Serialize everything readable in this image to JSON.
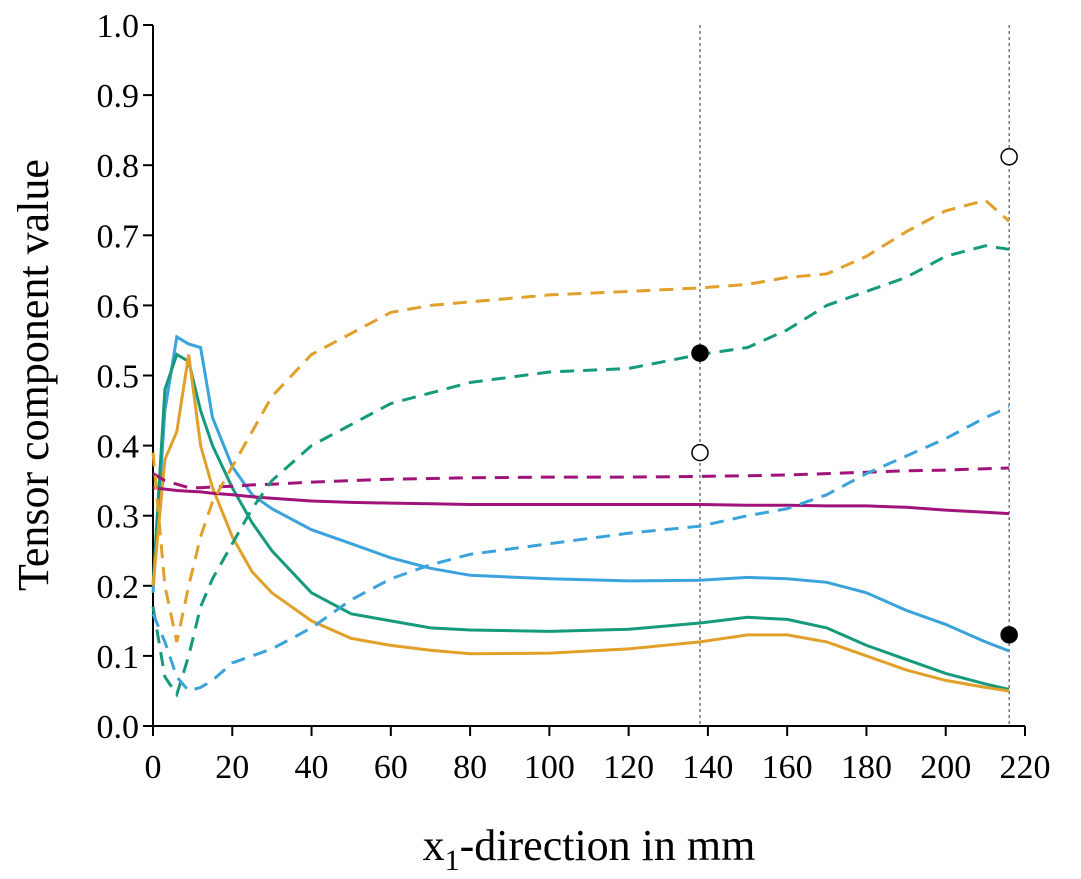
{
  "chart_data": {
    "type": "line",
    "ylabel": "Tensor component value",
    "xlabel": {
      "main": "x",
      "sub": "1",
      "rest": "-direction in mm"
    },
    "x": [
      0,
      3,
      6,
      9,
      12,
      15,
      20,
      25,
      30,
      40,
      50,
      60,
      70,
      80,
      100,
      120,
      138,
      150,
      160,
      170,
      180,
      190,
      200,
      210,
      216
    ],
    "series": [
      {
        "color": "#3ba3dc",
        "dashed": false,
        "values": [
          0.19,
          0.45,
          0.555,
          0.545,
          0.54,
          0.44,
          0.37,
          0.33,
          0.31,
          0.28,
          0.26,
          0.24,
          0.225,
          0.215,
          0.21,
          0.207,
          0.208,
          0.212,
          0.21,
          0.205,
          0.19,
          0.165,
          0.145,
          0.12,
          0.107
        ]
      },
      {
        "color": "#159a7c",
        "dashed": false,
        "values": [
          0.2,
          0.48,
          0.53,
          0.52,
          0.45,
          0.4,
          0.34,
          0.29,
          0.25,
          0.19,
          0.16,
          0.15,
          0.14,
          0.137,
          0.135,
          0.138,
          0.147,
          0.155,
          0.152,
          0.14,
          0.115,
          0.095,
          0.075,
          0.06,
          0.052
        ]
      },
      {
        "color": "#e0a02a",
        "dashed": false,
        "values": [
          0.2,
          0.38,
          0.42,
          0.53,
          0.4,
          0.34,
          0.27,
          0.22,
          0.19,
          0.15,
          0.125,
          0.115,
          0.108,
          0.103,
          0.104,
          0.11,
          0.12,
          0.13,
          0.13,
          0.12,
          0.1,
          0.08,
          0.065,
          0.055,
          0.05
        ]
      },
      {
        "color": "#a0147a",
        "dashed": false,
        "values": [
          0.34,
          0.338,
          0.336,
          0.335,
          0.334,
          0.332,
          0.33,
          0.327,
          0.325,
          0.321,
          0.319,
          0.318,
          0.317,
          0.316,
          0.316,
          0.316,
          0.316,
          0.315,
          0.315,
          0.314,
          0.314,
          0.312,
          0.308,
          0.305,
          0.303
        ]
      },
      {
        "color": "#a0147a",
        "dashed": true,
        "values": [
          0.36,
          0.35,
          0.345,
          0.34,
          0.34,
          0.341,
          0.342,
          0.344,
          0.345,
          0.348,
          0.35,
          0.352,
          0.353,
          0.354,
          0.355,
          0.355,
          0.356,
          0.357,
          0.358,
          0.36,
          0.362,
          0.364,
          0.365,
          0.367,
          0.368
        ]
      },
      {
        "color": "#e0a02a",
        "dashed": true,
        "values": [
          0.39,
          0.2,
          0.12,
          0.2,
          0.27,
          0.32,
          0.37,
          0.42,
          0.47,
          0.53,
          0.56,
          0.59,
          0.6,
          0.605,
          0.615,
          0.62,
          0.625,
          0.63,
          0.64,
          0.645,
          0.67,
          0.705,
          0.735,
          0.75,
          0.72
        ]
      },
      {
        "color": "#159a7c",
        "dashed": true,
        "values": [
          0.17,
          0.07,
          0.045,
          0.1,
          0.17,
          0.21,
          0.26,
          0.31,
          0.35,
          0.4,
          0.43,
          0.46,
          0.475,
          0.49,
          0.505,
          0.51,
          0.53,
          0.54,
          0.565,
          0.6,
          0.62,
          0.64,
          0.67,
          0.685,
          0.68
        ]
      },
      {
        "color": "#3ba3dc",
        "dashed": true,
        "values": [
          0.16,
          0.12,
          0.07,
          0.05,
          0.055,
          0.065,
          0.09,
          0.1,
          0.11,
          0.14,
          0.18,
          0.21,
          0.23,
          0.245,
          0.26,
          0.275,
          0.285,
          0.3,
          0.31,
          0.33,
          0.36,
          0.385,
          0.41,
          0.44,
          0.455
        ]
      }
    ],
    "points": [
      {
        "filled": true,
        "x": [
          138,
          216
        ],
        "y": [
          0.532,
          0.13
        ]
      },
      {
        "filled": false,
        "x": [
          138,
          216
        ],
        "y": [
          0.39,
          0.812
        ]
      }
    ],
    "vlines": [
      138,
      216
    ],
    "xlim": [
      0,
      220
    ],
    "xticks": [
      0,
      20,
      40,
      60,
      80,
      100,
      120,
      140,
      160,
      180,
      200,
      220
    ],
    "ylim": [
      0,
      1
    ],
    "yticks": [
      {
        "value": 0,
        "label": "0.0"
      },
      0.1,
      0.2,
      0.3,
      0.4,
      0.5,
      0.6,
      0.7,
      0.8,
      0.9,
      {
        "value": 1,
        "label": "1.0"
      }
    ]
  }
}
